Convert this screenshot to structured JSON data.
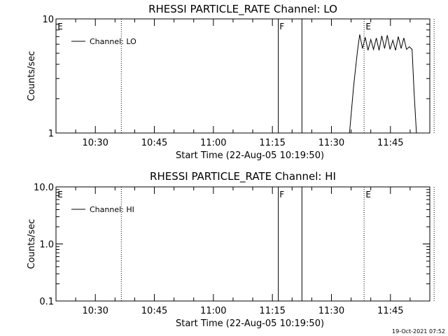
{
  "chart_data": [
    {
      "type": "line",
      "title": "RHESSI PARTICLE_RATE Channel: LO",
      "xlabel": "Start Time (22-Aug-05 10:19:50)",
      "ylabel": "Counts/sec",
      "yscale": "log",
      "ylim": [
        1,
        10
      ],
      "ytick_labels": [
        "1",
        "10"
      ],
      "ytick_values": [
        1,
        10
      ],
      "xlim_minutes": [
        5,
        100
      ],
      "xtick_labels": [
        "10:30",
        "10:45",
        "11:00",
        "11:15",
        "11:30",
        "11:45"
      ],
      "xtick_minutes": [
        15,
        30,
        45,
        60,
        75,
        90
      ],
      "legend": {
        "position": "top-left",
        "entries": [
          "Channel: LO"
        ]
      },
      "series": [
        {
          "name": "Channel: LO",
          "x_minutes": [
            79.6,
            80.6,
            81.6,
            82.2,
            82.9,
            83.6,
            84.3,
            85.0,
            85.7,
            86.4,
            87.1,
            87.8,
            88.5,
            89.2,
            89.9,
            90.6,
            91.3,
            92.0,
            92.7,
            93.4,
            94.1,
            94.8,
            95.5,
            96.0,
            96.6
          ],
          "values": [
            1.0,
            2.5,
            5.2,
            7.3,
            5.5,
            6.9,
            5.3,
            6.6,
            5.4,
            6.8,
            5.3,
            7.1,
            5.5,
            7.2,
            5.4,
            6.5,
            5.3,
            7.0,
            5.5,
            6.8,
            5.4,
            5.7,
            5.4,
            2.3,
            1.0
          ]
        }
      ],
      "vlines": [
        {
          "minute": 21.6,
          "style": "dotted"
        },
        {
          "minute": 61.5,
          "style": "solid"
        },
        {
          "minute": 67.5,
          "style": "solid"
        },
        {
          "minute": 83.3,
          "style": "dotted"
        },
        {
          "minute": 101.1,
          "style": "dotted"
        }
      ],
      "markers": [
        {
          "minute": 5.4,
          "label": "E"
        },
        {
          "minute": 61.8,
          "label": "F"
        },
        {
          "minute": 83.7,
          "label": "E"
        }
      ]
    },
    {
      "type": "line",
      "title": "RHESSI PARTICLE_RATE Channel: HI",
      "xlabel": "Start Time (22-Aug-05 10:19:50)",
      "ylabel": "Counts/sec",
      "yscale": "log",
      "ylim": [
        0.1,
        10
      ],
      "ytick_labels": [
        "0.1",
        "1.0",
        "10.0"
      ],
      "ytick_values": [
        0.1,
        1,
        10
      ],
      "xlim_minutes": [
        5,
        100
      ],
      "xtick_labels": [
        "10:30",
        "10:45",
        "11:00",
        "11:15",
        "11:30",
        "11:45"
      ],
      "xtick_minutes": [
        15,
        30,
        45,
        60,
        75,
        90
      ],
      "legend": {
        "position": "top-left",
        "entries": [
          "Channel: HI"
        ]
      },
      "series": [
        {
          "name": "Channel: HI",
          "x_minutes": [],
          "values": []
        }
      ],
      "vlines": [
        {
          "minute": 21.6,
          "style": "dotted"
        },
        {
          "minute": 61.5,
          "style": "solid"
        },
        {
          "minute": 67.5,
          "style": "solid"
        },
        {
          "minute": 83.3,
          "style": "dotted"
        },
        {
          "minute": 101.1,
          "style": "dotted"
        }
      ],
      "markers": [
        {
          "minute": 5.4,
          "label": "E"
        },
        {
          "minute": 61.8,
          "label": "F"
        },
        {
          "minute": 83.7,
          "label": "E"
        }
      ]
    }
  ],
  "timestamp": "19-Oct-2021 07:52"
}
